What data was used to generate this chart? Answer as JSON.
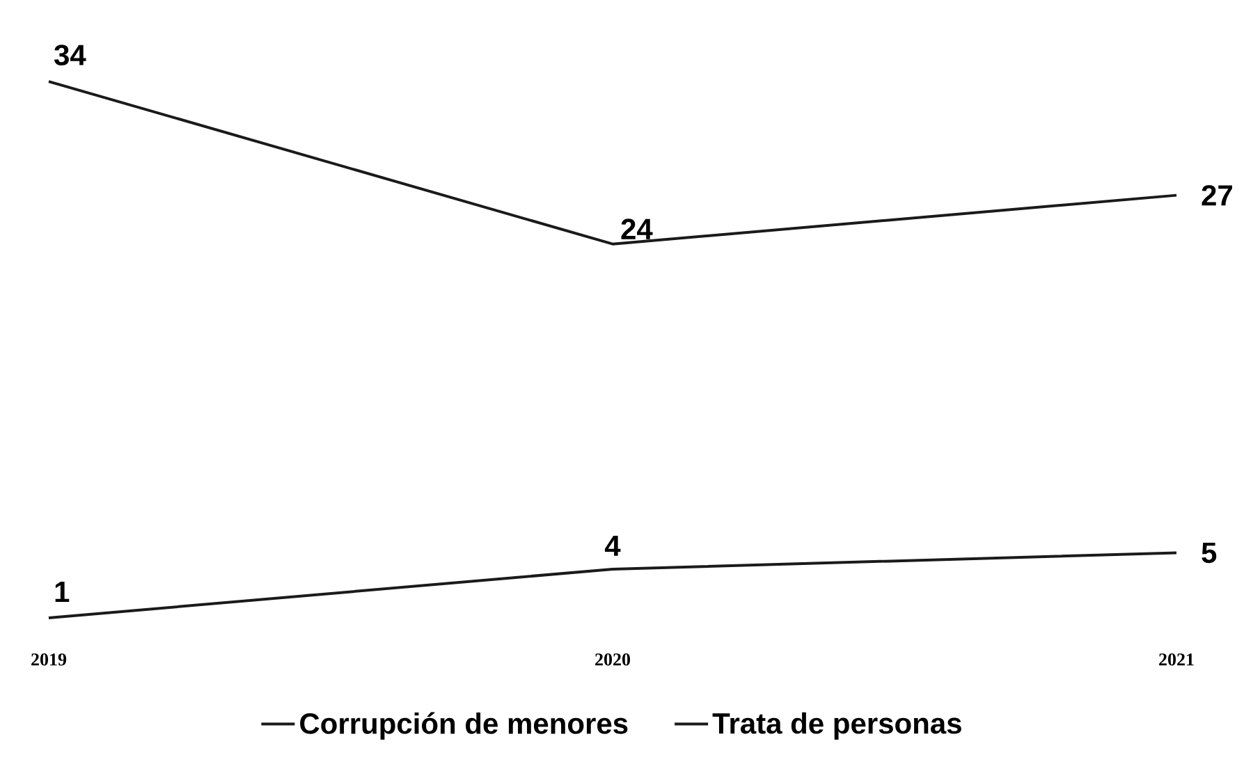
{
  "chart_data": {
    "type": "line",
    "categories": [
      "2019",
      "2020",
      "2021"
    ],
    "series": [
      {
        "name": "Corrupción de menores",
        "color": "#1a1a1a",
        "values": [
          34,
          24,
          27
        ]
      },
      {
        "name": "Trata de personas",
        "color": "#1a1a1a",
        "values": [
          1,
          4,
          5
        ]
      }
    ],
    "data_labels": true,
    "legend": "bottom",
    "tick_labels": "x",
    "grid": false,
    "marker": "none",
    "line_style": "solid"
  }
}
